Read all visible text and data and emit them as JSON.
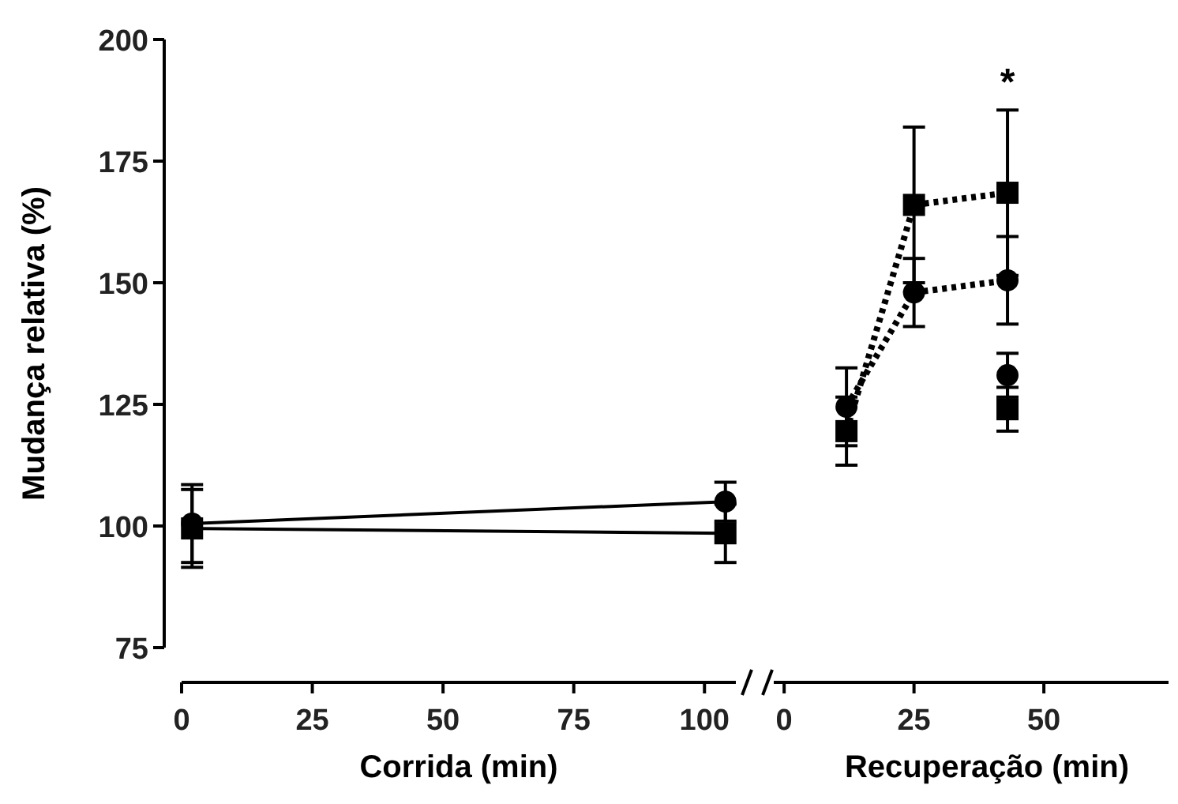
{
  "chart_data": [
    {
      "type": "line",
      "xlabel": "Corrida (min)",
      "ylabel": "Mudança relativa (%)",
      "xlim": [
        0,
        106
      ],
      "xticks": [
        0,
        25,
        50,
        75,
        100
      ],
      "ylim": [
        75,
        200
      ],
      "yticks": [
        75,
        100,
        125,
        150,
        175,
        200
      ],
      "line_style": "solid",
      "series": [
        {
          "color": "#000000",
          "marker": "circle",
          "x": [
            2,
            104
          ],
          "values": [
            100.5,
            105
          ],
          "errors": [
            8,
            4
          ]
        },
        {
          "color": "#000000",
          "marker": "square",
          "x": [
            2,
            104
          ],
          "values": [
            99.5,
            98.5
          ],
          "errors": [
            8,
            6
          ]
        }
      ]
    },
    {
      "type": "line",
      "xlabel": "Recuperação (min)",
      "xlim": [
        -2,
        74
      ],
      "xticks": [
        0,
        25,
        50
      ],
      "ylim": [
        75,
        200
      ],
      "tick_labels": "x",
      "line_style": "dotted",
      "annotations": [
        "*"
      ],
      "series": [
        {
          "color": "#000000",
          "marker": "circle",
          "x": [
            12,
            25,
            43
          ],
          "values": [
            124.5,
            148,
            150.5
          ],
          "errors": [
            8,
            7,
            9
          ]
        },
        {
          "color": "#000000",
          "marker": "square",
          "x": [
            12,
            25,
            43
          ],
          "values": [
            119.5,
            166,
            168.5
          ],
          "errors": [
            7,
            16,
            17
          ]
        },
        {
          "type": "scatter",
          "color": "#000000",
          "marker": "circle",
          "x": [
            43
          ],
          "values": [
            131
          ],
          "errors": [
            4.5
          ]
        },
        {
          "type": "scatter",
          "color": "#000000",
          "marker": "square",
          "x": [
            43
          ],
          "values": [
            124
          ],
          "errors": [
            4.5
          ]
        }
      ]
    }
  ]
}
